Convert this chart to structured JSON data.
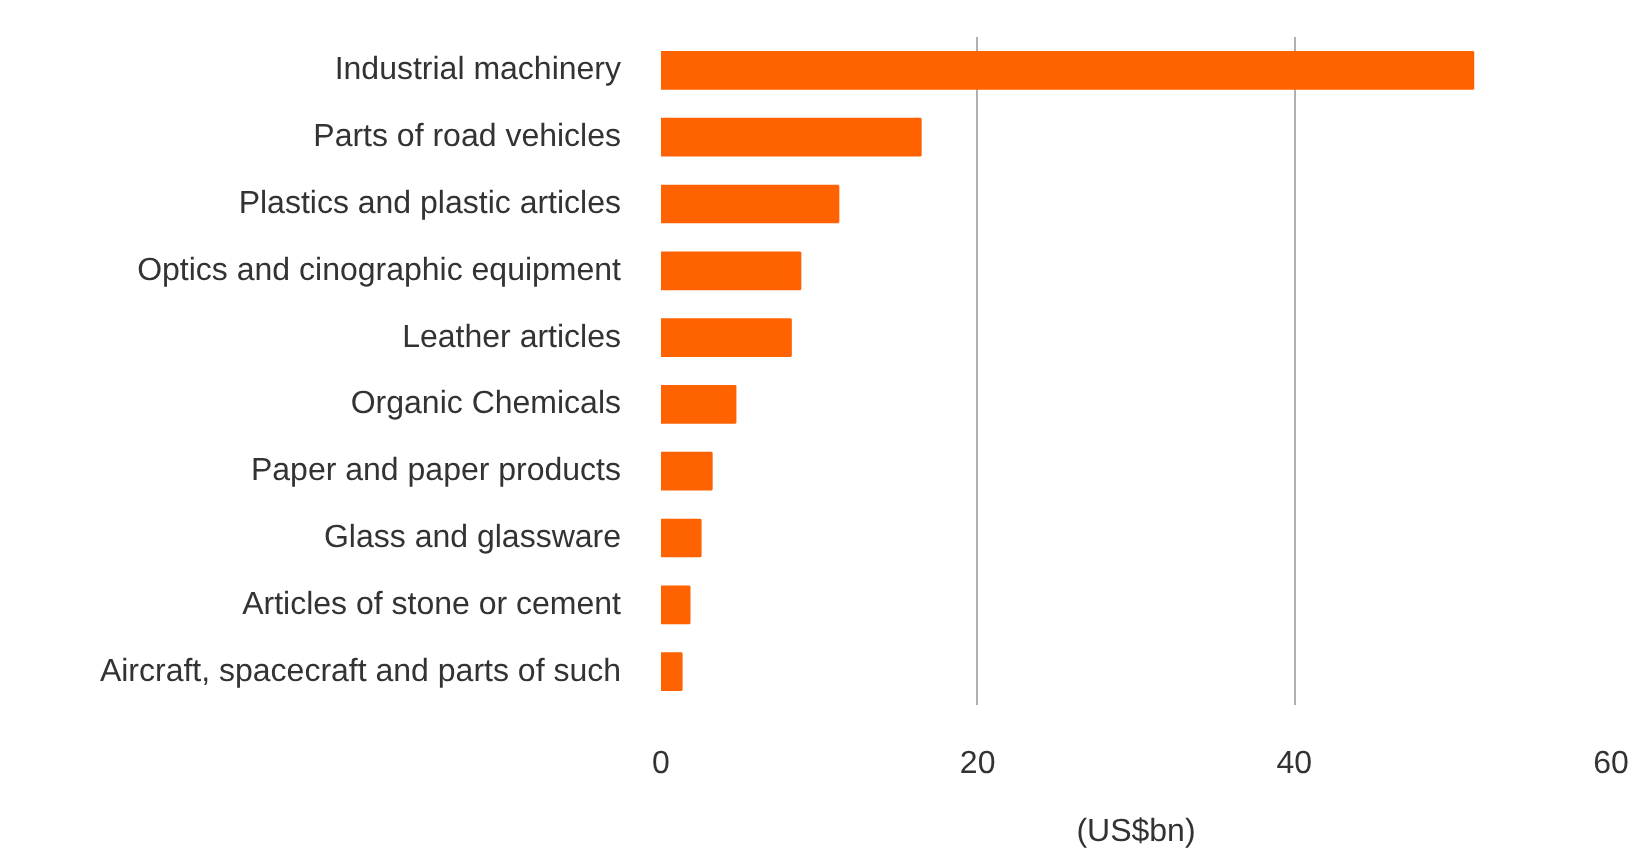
{
  "chart_data": {
    "type": "bar",
    "orientation": "horizontal",
    "xlabel": "(US$bn)",
    "categories": [
      "Industrial machinery",
      "Parts of road vehicles",
      "Plastics and plastic articles",
      "Optics and cinographic equipment",
      "Leather articles",
      "Organic Chemicals",
      "Paper and paper products",
      "Glass and glassware",
      "Articles of stone or cement",
      "Aircraft, spacecraft and parts of such"
    ],
    "values": [
      51.3,
      16.4,
      11.2,
      8.8,
      8.2,
      4.7,
      3.2,
      2.5,
      1.8,
      1.3
    ],
    "color": "#ff6200",
    "xlim": [
      0,
      60
    ],
    "xticks": [
      0,
      20,
      40,
      60
    ],
    "grid": "x"
  }
}
